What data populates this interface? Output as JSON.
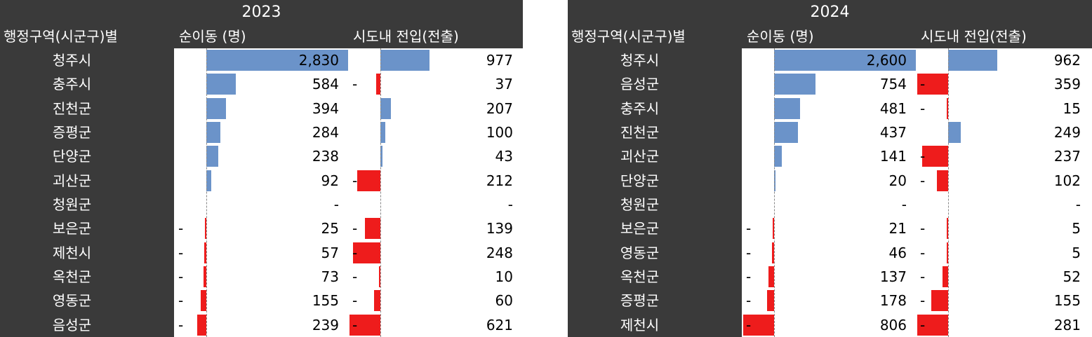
{
  "panels": [
    {
      "year": "2023",
      "headers": {
        "region": "행정구역(시군구)별",
        "net": "순이동 (명)",
        "intra": "시도내 전입(전출)"
      },
      "colors": {
        "positive": "#6b93c9",
        "negative": "#ee1c1c",
        "header_bg": "#3a3a3a"
      },
      "max_net": 2830,
      "max_intra": 977,
      "rows": [
        {
          "name": "청주시",
          "net": "2,830",
          "net_value": 2830,
          "net_dash": "",
          "intra": "977",
          "intra_value": 977,
          "intra_dash": ""
        },
        {
          "name": "충주시",
          "net": "584",
          "net_value": 584,
          "net_dash": "",
          "intra": "37",
          "intra_value": -37,
          "intra_dash": "-"
        },
        {
          "name": "진천군",
          "net": "394",
          "net_value": 394,
          "net_dash": "",
          "intra": "207",
          "intra_value": 207,
          "intra_dash": ""
        },
        {
          "name": "증평군",
          "net": "284",
          "net_value": 284,
          "net_dash": "",
          "intra": "100",
          "intra_value": 100,
          "intra_dash": ""
        },
        {
          "name": "단양군",
          "net": "238",
          "net_value": 238,
          "net_dash": "",
          "intra": "43",
          "intra_value": 43,
          "intra_dash": ""
        },
        {
          "name": "괴산군",
          "net": "92",
          "net_value": 92,
          "net_dash": "",
          "intra": "212",
          "intra_value": -212,
          "intra_dash": "-"
        },
        {
          "name": "청원군",
          "net": "-",
          "net_value": 0,
          "net_dash": "",
          "intra": "-",
          "intra_value": 0,
          "intra_dash": ""
        },
        {
          "name": "보은군",
          "net": "25",
          "net_value": -25,
          "net_dash": "-",
          "intra": "139",
          "intra_value": -139,
          "intra_dash": "-"
        },
        {
          "name": "제천시",
          "net": "57",
          "net_value": -57,
          "net_dash": "-",
          "intra": "248",
          "intra_value": -248,
          "intra_dash": "-"
        },
        {
          "name": "옥천군",
          "net": "73",
          "net_value": -73,
          "net_dash": "-",
          "intra": "10",
          "intra_value": -10,
          "intra_dash": "-"
        },
        {
          "name": "영동군",
          "net": "155",
          "net_value": -155,
          "net_dash": "-",
          "intra": "60",
          "intra_value": -60,
          "intra_dash": "-"
        },
        {
          "name": "음성군",
          "net": "239",
          "net_value": -239,
          "net_dash": "-",
          "intra": "621",
          "intra_value": -621,
          "intra_dash": "-"
        }
      ]
    },
    {
      "year": "2024",
      "headers": {
        "region": "행정구역(시군구)별",
        "net": "순이동 (명)",
        "intra": "시도내 전입(전출)"
      },
      "colors": {
        "positive": "#6b93c9",
        "negative": "#ee1c1c",
        "header_bg": "#3a3a3a"
      },
      "max_net": 2600,
      "max_intra": 962,
      "rows": [
        {
          "name": "청주시",
          "net": "2,600",
          "net_value": 2600,
          "net_dash": "",
          "intra": "962",
          "intra_value": 962,
          "intra_dash": ""
        },
        {
          "name": "음성군",
          "net": "754",
          "net_value": 754,
          "net_dash": "",
          "intra": "359",
          "intra_value": -359,
          "intra_dash": "-"
        },
        {
          "name": "충주시",
          "net": "481",
          "net_value": 481,
          "net_dash": "",
          "intra": "15",
          "intra_value": -15,
          "intra_dash": "-"
        },
        {
          "name": "진천군",
          "net": "437",
          "net_value": 437,
          "net_dash": "",
          "intra": "249",
          "intra_value": 249,
          "intra_dash": ""
        },
        {
          "name": "괴산군",
          "net": "141",
          "net_value": 141,
          "net_dash": "",
          "intra": "237",
          "intra_value": -237,
          "intra_dash": "-"
        },
        {
          "name": "단양군",
          "net": "20",
          "net_value": 20,
          "net_dash": "",
          "intra": "102",
          "intra_value": -102,
          "intra_dash": "-"
        },
        {
          "name": "청원군",
          "net": "-",
          "net_value": 0,
          "net_dash": "",
          "intra": "-",
          "intra_value": 0,
          "intra_dash": ""
        },
        {
          "name": "보은군",
          "net": "21",
          "net_value": -21,
          "net_dash": "-",
          "intra": "5",
          "intra_value": -5,
          "intra_dash": "-"
        },
        {
          "name": "영동군",
          "net": "46",
          "net_value": -46,
          "net_dash": "-",
          "intra": "5",
          "intra_value": -5,
          "intra_dash": "-"
        },
        {
          "name": "옥천군",
          "net": "137",
          "net_value": -137,
          "net_dash": "-",
          "intra": "52",
          "intra_value": -52,
          "intra_dash": "-"
        },
        {
          "name": "증평군",
          "net": "178",
          "net_value": -178,
          "net_dash": "-",
          "intra": "155",
          "intra_value": -155,
          "intra_dash": "-"
        },
        {
          "name": "제천시",
          "net": "806",
          "net_value": -806,
          "net_dash": "-",
          "intra": "281",
          "intra_value": -281,
          "intra_dash": "-"
        }
      ]
    }
  ]
}
